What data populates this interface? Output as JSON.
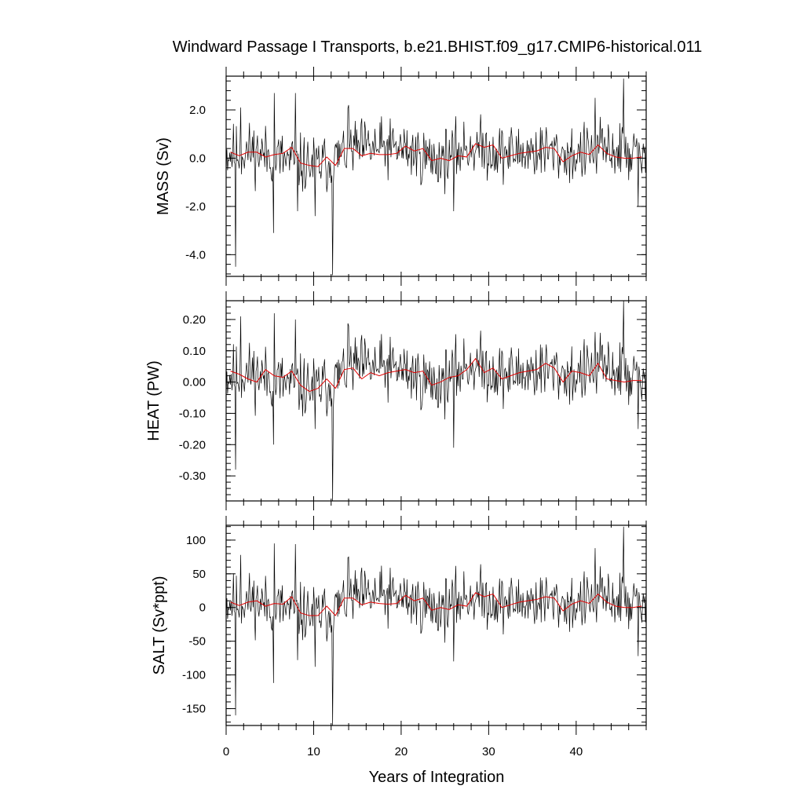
{
  "title": "Windward Passage I Transports, b.e21.BHIST.f09_g17.CMIP6-historical.011",
  "colors": {
    "raw": "#000000",
    "smooth": "#e00000"
  },
  "chart_data": [
    {
      "type": "line",
      "ylabel": "MASS (Sv)",
      "xlabel": "",
      "xlim": [
        0,
        48
      ],
      "ylim": [
        -4.9,
        3.4
      ],
      "yticks": [
        2.0,
        0.0,
        -2.0,
        -4.0
      ],
      "ytick_labels": [
        "2.0",
        "0.0",
        "-2.0",
        "-4.0"
      ],
      "xticks": [
        0,
        10,
        20,
        30,
        40
      ],
      "spikes": [
        [
          1.1,
          -4.5
        ],
        [
          1.7,
          2.1
        ],
        [
          5.4,
          -3.1
        ],
        [
          5.5,
          2.7
        ],
        [
          7.9,
          2.7
        ],
        [
          8.2,
          -2.2
        ],
        [
          10.2,
          -2.4
        ],
        [
          12.2,
          -4.85
        ],
        [
          14.0,
          2.2
        ],
        [
          26.0,
          -2.2
        ],
        [
          42.2,
          2.5
        ],
        [
          45.4,
          3.3
        ],
        [
          47.1,
          -2.0
        ]
      ],
      "series": [
        {
          "role": "raw",
          "style": "monthly",
          "amplitude": 0.85,
          "seed": 11,
          "trend": [
            [
              0,
              0.2
            ],
            [
              3,
              0.3
            ],
            [
              6,
              0.0
            ],
            [
              9,
              -0.3
            ],
            [
              12,
              -0.2
            ],
            [
              14,
              0.4
            ],
            [
              20,
              0.4
            ],
            [
              24,
              -0.1
            ],
            [
              28,
              0.5
            ],
            [
              32,
              0.2
            ],
            [
              36,
              0.3
            ],
            [
              40,
              0.1
            ],
            [
              43,
              0.4
            ],
            [
              48,
              0.1
            ]
          ]
        },
        {
          "role": "smooth",
          "style": "annual",
          "points": [
            [
              0.5,
              0.25
            ],
            [
              1.5,
              0.1
            ],
            [
              2.5,
              0.25
            ],
            [
              3.5,
              0.25
            ],
            [
              4.5,
              0.05
            ],
            [
              5.5,
              0.15
            ],
            [
              6.5,
              0.2
            ],
            [
              7.5,
              0.45
            ],
            [
              8.5,
              -0.2
            ],
            [
              9.5,
              -0.3
            ],
            [
              10.5,
              -0.35
            ],
            [
              11.5,
              0.05
            ],
            [
              12.5,
              -0.3
            ],
            [
              13.5,
              0.4
            ],
            [
              14.5,
              0.4
            ],
            [
              15.5,
              0.1
            ],
            [
              16.5,
              0.2
            ],
            [
              17.5,
              0.15
            ],
            [
              18.5,
              0.15
            ],
            [
              19.5,
              0.2
            ],
            [
              20.5,
              0.5
            ],
            [
              21.5,
              0.3
            ],
            [
              22.5,
              0.4
            ],
            [
              23.5,
              -0.1
            ],
            [
              24.5,
              0.0
            ],
            [
              25.5,
              -0.1
            ],
            [
              26.5,
              0.1
            ],
            [
              27.5,
              0.05
            ],
            [
              28.5,
              0.6
            ],
            [
              29.5,
              0.45
            ],
            [
              30.5,
              0.55
            ],
            [
              31.5,
              0.0
            ],
            [
              32.5,
              0.1
            ],
            [
              33.5,
              0.2
            ],
            [
              34.5,
              0.25
            ],
            [
              35.5,
              0.3
            ],
            [
              36.5,
              0.45
            ],
            [
              37.5,
              0.4
            ],
            [
              38.5,
              -0.15
            ],
            [
              39.5,
              0.1
            ],
            [
              40.5,
              0.25
            ],
            [
              41.5,
              0.15
            ],
            [
              42.5,
              0.55
            ],
            [
              43.5,
              0.2
            ],
            [
              44.5,
              0.05
            ],
            [
              45.5,
              0.0
            ],
            [
              46.5,
              0.0
            ],
            [
              47.5,
              0.05
            ]
          ]
        }
      ]
    },
    {
      "type": "line",
      "ylabel": "HEAT (PW)",
      "xlabel": "",
      "xlim": [
        0,
        48
      ],
      "ylim": [
        -0.38,
        0.26
      ],
      "yticks": [
        0.2,
        0.1,
        0.0,
        -0.1,
        -0.2,
        -0.3
      ],
      "ytick_labels": [
        "0.20",
        "0.10",
        "0.00",
        "-0.10",
        "-0.20",
        "-0.30"
      ],
      "xticks": [
        0,
        10,
        20,
        30,
        40
      ],
      "spikes": [
        [
          1.1,
          -0.28
        ],
        [
          1.7,
          0.21
        ],
        [
          5.4,
          -0.2
        ],
        [
          5.5,
          0.22
        ],
        [
          7.9,
          0.2
        ],
        [
          10.2,
          -0.15
        ],
        [
          12.2,
          -0.38
        ],
        [
          14.0,
          0.18
        ],
        [
          26.0,
          -0.21
        ],
        [
          42.2,
          0.16
        ],
        [
          45.4,
          0.26
        ],
        [
          47.1,
          -0.15
        ]
      ],
      "series": [
        {
          "role": "raw",
          "style": "monthly",
          "amplitude": 0.07,
          "seed": 11,
          "trend": [
            [
              0,
              0.02
            ],
            [
              3,
              0.03
            ],
            [
              6,
              0.0
            ],
            [
              9,
              -0.02
            ],
            [
              12,
              -0.01
            ],
            [
              14,
              0.05
            ],
            [
              20,
              0.04
            ],
            [
              24,
              -0.01
            ],
            [
              28,
              0.06
            ],
            [
              32,
              0.02
            ],
            [
              36,
              0.04
            ],
            [
              40,
              0.02
            ],
            [
              43,
              0.05
            ],
            [
              48,
              0.0
            ]
          ]
        },
        {
          "role": "smooth",
          "style": "annual",
          "points": [
            [
              0.5,
              0.035
            ],
            [
              1.5,
              0.025
            ],
            [
              2.5,
              0.01
            ],
            [
              3.5,
              0.0
            ],
            [
              4.5,
              0.04
            ],
            [
              5.5,
              0.02
            ],
            [
              6.5,
              0.015
            ],
            [
              7.5,
              0.035
            ],
            [
              8.5,
              -0.01
            ],
            [
              9.5,
              -0.03
            ],
            [
              10.5,
              -0.02
            ],
            [
              11.5,
              0.01
            ],
            [
              12.5,
              -0.02
            ],
            [
              13.5,
              0.04
            ],
            [
              14.5,
              0.045
            ],
            [
              15.5,
              0.01
            ],
            [
              16.5,
              0.03
            ],
            [
              17.5,
              0.02
            ],
            [
              18.5,
              0.03
            ],
            [
              19.5,
              0.035
            ],
            [
              20.5,
              0.04
            ],
            [
              21.5,
              0.03
            ],
            [
              22.5,
              0.035
            ],
            [
              23.5,
              -0.01
            ],
            [
              24.5,
              0.0
            ],
            [
              25.5,
              0.015
            ],
            [
              26.5,
              0.02
            ],
            [
              27.5,
              0.04
            ],
            [
              28.5,
              0.075
            ],
            [
              29.5,
              0.03
            ],
            [
              30.5,
              0.045
            ],
            [
              31.5,
              0.01
            ],
            [
              32.5,
              0.02
            ],
            [
              33.5,
              0.03
            ],
            [
              34.5,
              0.035
            ],
            [
              35.5,
              0.04
            ],
            [
              36.5,
              0.06
            ],
            [
              37.5,
              0.045
            ],
            [
              38.5,
              0.0
            ],
            [
              39.5,
              0.035
            ],
            [
              40.5,
              0.03
            ],
            [
              41.5,
              0.02
            ],
            [
              42.5,
              0.06
            ],
            [
              43.5,
              0.01
            ],
            [
              44.5,
              0.005
            ],
            [
              45.5,
              0.0
            ],
            [
              46.5,
              0.005
            ],
            [
              47.5,
              0.005
            ]
          ]
        }
      ]
    },
    {
      "type": "line",
      "ylabel": "SALT (Sv*ppt)",
      "xlabel": "Years of Integration",
      "xlim": [
        0,
        48
      ],
      "ylim": [
        -175,
        122
      ],
      "yticks": [
        100,
        50,
        0,
        -50,
        -100,
        -150
      ],
      "ytick_labels": [
        "100",
        "50",
        "0",
        "-50",
        "-100",
        "-150"
      ],
      "xticks": [
        0,
        10,
        20,
        30,
        40
      ],
      "xtick_labels": [
        "0",
        "10",
        "20",
        "30",
        "40"
      ],
      "spikes": [
        [
          1.1,
          -160
        ],
        [
          1.7,
          78
        ],
        [
          5.4,
          -112
        ],
        [
          5.5,
          95
        ],
        [
          7.9,
          94
        ],
        [
          8.2,
          -78
        ],
        [
          10.2,
          -88
        ],
        [
          12.2,
          -175
        ],
        [
          14.0,
          75
        ],
        [
          26.0,
          -80
        ],
        [
          42.2,
          88
        ],
        [
          45.4,
          120
        ],
        [
          47.1,
          -72
        ]
      ],
      "series": [
        {
          "role": "raw",
          "style": "monthly",
          "amplitude": 30,
          "seed": 11,
          "trend": [
            [
              0,
              8
            ],
            [
              3,
              10
            ],
            [
              6,
              0
            ],
            [
              9,
              -10
            ],
            [
              12,
              -8
            ],
            [
              14,
              15
            ],
            [
              20,
              15
            ],
            [
              24,
              -3
            ],
            [
              28,
              18
            ],
            [
              32,
              6
            ],
            [
              36,
              10
            ],
            [
              40,
              4
            ],
            [
              43,
              15
            ],
            [
              48,
              3
            ]
          ]
        },
        {
          "role": "smooth",
          "style": "annual",
          "points": [
            [
              0.5,
              8
            ],
            [
              1.5,
              3
            ],
            [
              2.5,
              8
            ],
            [
              3.5,
              10
            ],
            [
              4.5,
              2
            ],
            [
              5.5,
              6
            ],
            [
              6.5,
              5
            ],
            [
              7.5,
              16
            ],
            [
              8.5,
              -8
            ],
            [
              9.5,
              -12
            ],
            [
              10.5,
              -12
            ],
            [
              11.5,
              2
            ],
            [
              12.5,
              -12
            ],
            [
              13.5,
              14
            ],
            [
              14.5,
              14
            ],
            [
              15.5,
              4
            ],
            [
              16.5,
              8
            ],
            [
              17.5,
              6
            ],
            [
              18.5,
              5
            ],
            [
              19.5,
              6
            ],
            [
              20.5,
              18
            ],
            [
              21.5,
              10
            ],
            [
              22.5,
              14
            ],
            [
              23.5,
              -4
            ],
            [
              24.5,
              0
            ],
            [
              25.5,
              -3
            ],
            [
              26.5,
              4
            ],
            [
              27.5,
              2
            ],
            [
              28.5,
              22
            ],
            [
              29.5,
              16
            ],
            [
              30.5,
              20
            ],
            [
              31.5,
              0
            ],
            [
              32.5,
              4
            ],
            [
              33.5,
              8
            ],
            [
              34.5,
              10
            ],
            [
              35.5,
              12
            ],
            [
              36.5,
              16
            ],
            [
              37.5,
              14
            ],
            [
              38.5,
              -5
            ],
            [
              39.5,
              5
            ],
            [
              40.5,
              10
            ],
            [
              41.5,
              6
            ],
            [
              42.5,
              20
            ],
            [
              43.5,
              8
            ],
            [
              44.5,
              2
            ],
            [
              45.5,
              0
            ],
            [
              46.5,
              0
            ],
            [
              47.5,
              2
            ]
          ]
        }
      ]
    }
  ]
}
